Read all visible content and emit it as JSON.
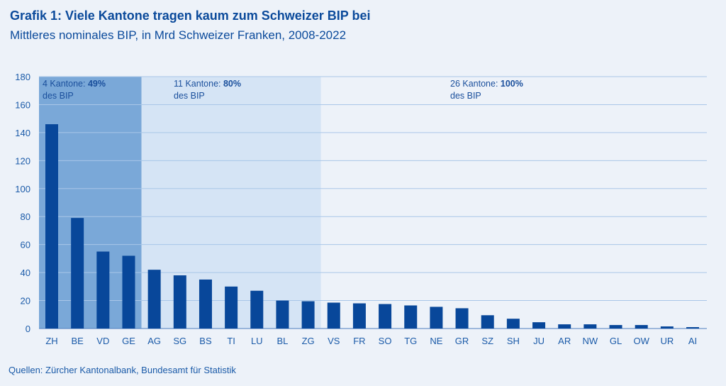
{
  "title": "Grafik 1: Viele Kantone tragen kaum zum Schweizer BIP bei",
  "subtitle": "Mittleres nominales BIP, in Mrd Schweizer Franken, 2008-2022",
  "source": "Quellen: Zürcher Kantonalbank, Bundesamt für Statistik",
  "chart_data": {
    "type": "bar",
    "title": "Grafik 1: Viele Kantone tragen kaum zum Schweizer BIP bei",
    "xlabel": "",
    "ylabel": "",
    "ylim": [
      0,
      180
    ],
    "yticks": [
      0,
      20,
      40,
      60,
      80,
      100,
      120,
      140,
      160,
      180
    ],
    "grid": true,
    "categories": [
      "ZH",
      "BE",
      "VD",
      "GE",
      "AG",
      "SG",
      "BS",
      "TI",
      "LU",
      "BL",
      "ZG",
      "VS",
      "FR",
      "SO",
      "TG",
      "NE",
      "GR",
      "SZ",
      "SH",
      "JU",
      "AR",
      "NW",
      "GL",
      "OW",
      "UR",
      "AI"
    ],
    "values": [
      146,
      79,
      55,
      52,
      42,
      38,
      35,
      30,
      27,
      20,
      19.5,
      18.5,
      18,
      17.5,
      16.5,
      15.5,
      14.5,
      9.5,
      7,
      4.5,
      3,
      3,
      2.5,
      2.5,
      1.5,
      1
    ],
    "bar_color": "#08479a",
    "annotations": [
      {
        "text": "4 Kantone: ",
        "bold": "49%",
        "line2": "des BIP",
        "span": [
          "ZH",
          "GE"
        ],
        "color": "#7aa8d8"
      },
      {
        "text": "11 Kantone: ",
        "bold": "80%",
        "line2": "des BIP",
        "span": [
          "AG",
          "ZG"
        ],
        "color": "#d5e4f5"
      },
      {
        "text": "26 Kantone: ",
        "bold": "100%",
        "line2": "des BIP",
        "span": [
          "VS",
          "AI"
        ],
        "color": "#edf2f9"
      }
    ]
  }
}
